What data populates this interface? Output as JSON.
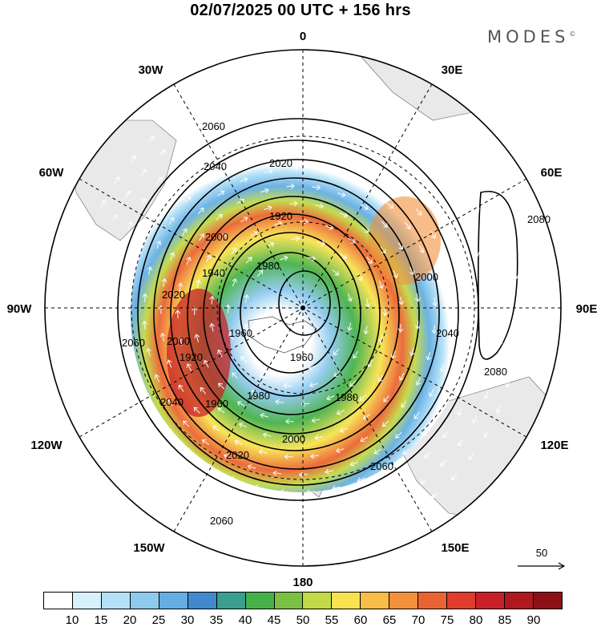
{
  "header": {
    "title": "02/07/2025  00 UTC  + 156 hrs",
    "brand": "MODES",
    "brand_mark": "©"
  },
  "map": {
    "projection": "polar stereographic, south pole centered",
    "longitude_labels": {
      "top": "0",
      "bottom": "180",
      "left": "90W",
      "right": "90E",
      "upper_left_30": "30W",
      "upper_right_30": "30E",
      "left_60_upper": "60W",
      "right_60_upper": "60E",
      "left_120": "120W",
      "right_120": "120E",
      "lower_left_150": "150W",
      "lower_right_150": "150E"
    },
    "contour_labels": [
      "2060",
      "2040",
      "2020",
      "2000",
      "1940",
      "1920",
      "1960",
      "1980",
      "2080",
      "2060",
      "2040",
      "2020",
      "2000",
      "1960",
      "1980",
      "2000",
      "2020",
      "2060",
      "2060",
      "1920",
      "1960",
      "1980",
      "2000",
      "2040",
      "2080"
    ],
    "reference_vector_label": "50"
  },
  "colorbar": {
    "ticks": [
      "10",
      "15",
      "20",
      "25",
      "30",
      "35",
      "40",
      "45",
      "50",
      "55",
      "60",
      "65",
      "70",
      "75",
      "80",
      "85",
      "90"
    ],
    "colors": [
      "#ffffff",
      "#d7f1fc",
      "#b4e1f7",
      "#8ec9ee",
      "#64aee3",
      "#4189cf",
      "#3a9f8f",
      "#46b14a",
      "#7ac143",
      "#c2da46",
      "#f7e34f",
      "#f8bd46",
      "#f3903b",
      "#ec6332",
      "#e03c2d",
      "#c92027",
      "#b0181f",
      "#8e1017"
    ]
  }
}
